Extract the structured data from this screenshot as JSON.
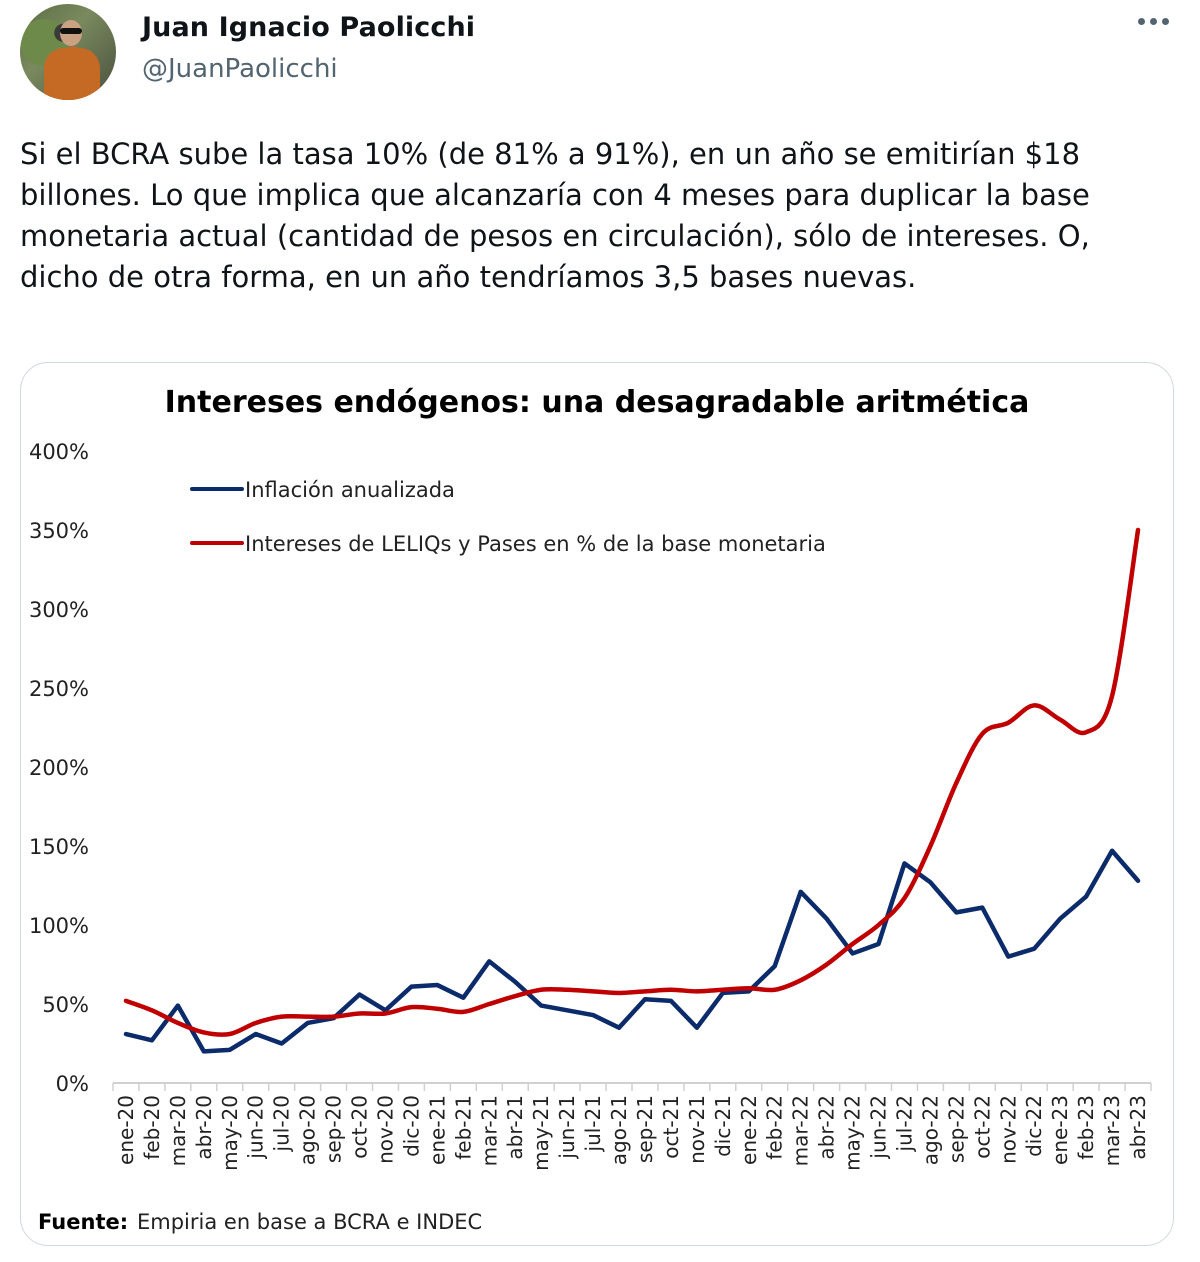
{
  "tweet": {
    "author_name": "Juan Ignacio Paolicchi",
    "author_handle": "@JuanPaolicchi",
    "more_icon": "more-horizontal-icon",
    "text": "Si el BCRA sube la tasa 10% (de 81% a 91%), en un año se emitirían $18 billones. Lo que implica que alcanzaría con 4 meses para duplicar la base monetaria actual (cantidad de pesos en circulación), sólo de intereses. O, dicho de otra forma, en un año tendríamos 3,5 bases nuevas."
  },
  "colors": {
    "series_inflation": "#0c2b6b",
    "series_interest": "#c00000"
  },
  "chart_data": {
    "type": "line",
    "title": "Intereses endógenos: una desagradable aritmética",
    "xlabel": "",
    "ylabel": "",
    "ylim": [
      0,
      400
    ],
    "yticks": [
      "0%",
      "50%",
      "100%",
      "150%",
      "200%",
      "250%",
      "300%",
      "350%",
      "400%"
    ],
    "ytick_values": [
      0,
      50,
      100,
      150,
      200,
      250,
      300,
      350,
      400
    ],
    "grid": false,
    "legend_position": "top-left",
    "categories": [
      "ene-20",
      "feb-20",
      "mar-20",
      "abr-20",
      "may-20",
      "jun-20",
      "jul-20",
      "ago-20",
      "sep-20",
      "oct-20",
      "nov-20",
      "dic-20",
      "ene-21",
      "feb-21",
      "mar-21",
      "abr-21",
      "may-21",
      "jun-21",
      "jul-21",
      "ago-21",
      "sep-21",
      "oct-21",
      "nov-21",
      "dic-21",
      "ene-22",
      "feb-22",
      "mar-22",
      "abr-22",
      "may-22",
      "jun-22",
      "jul-22",
      "ago-22",
      "sep-22",
      "oct-22",
      "nov-22",
      "dic-22",
      "ene-23",
      "feb-23",
      "mar-23",
      "abr-23"
    ],
    "series": [
      {
        "name": "Inflación anualizada",
        "color": "#0c2b6b",
        "smooth": false,
        "values": [
          31,
          27,
          49,
          20,
          21,
          31,
          25,
          38,
          41,
          56,
          46,
          61,
          62,
          54,
          77,
          64,
          49,
          46,
          43,
          35,
          53,
          52,
          35,
          57,
          58,
          74,
          121,
          104,
          82,
          88,
          139,
          127,
          108,
          111,
          80,
          85,
          104,
          118,
          147,
          128
        ]
      },
      {
        "name": "Intereses de LELIQs y Pases en % de la base monetaria",
        "color": "#c00000",
        "smooth": true,
        "values": [
          52,
          46,
          38,
          32,
          31,
          38,
          42,
          42,
          42,
          44,
          44,
          48,
          47,
          45,
          50,
          55,
          59,
          59,
          58,
          57,
          58,
          59,
          58,
          59,
          60,
          59,
          65,
          75,
          88,
          100,
          117,
          150,
          190,
          221,
          228,
          239,
          230,
          222,
          245,
          350
        ]
      }
    ],
    "source_label": "Fuente:",
    "source_text": "Empiria en base a BCRA e INDEC"
  }
}
